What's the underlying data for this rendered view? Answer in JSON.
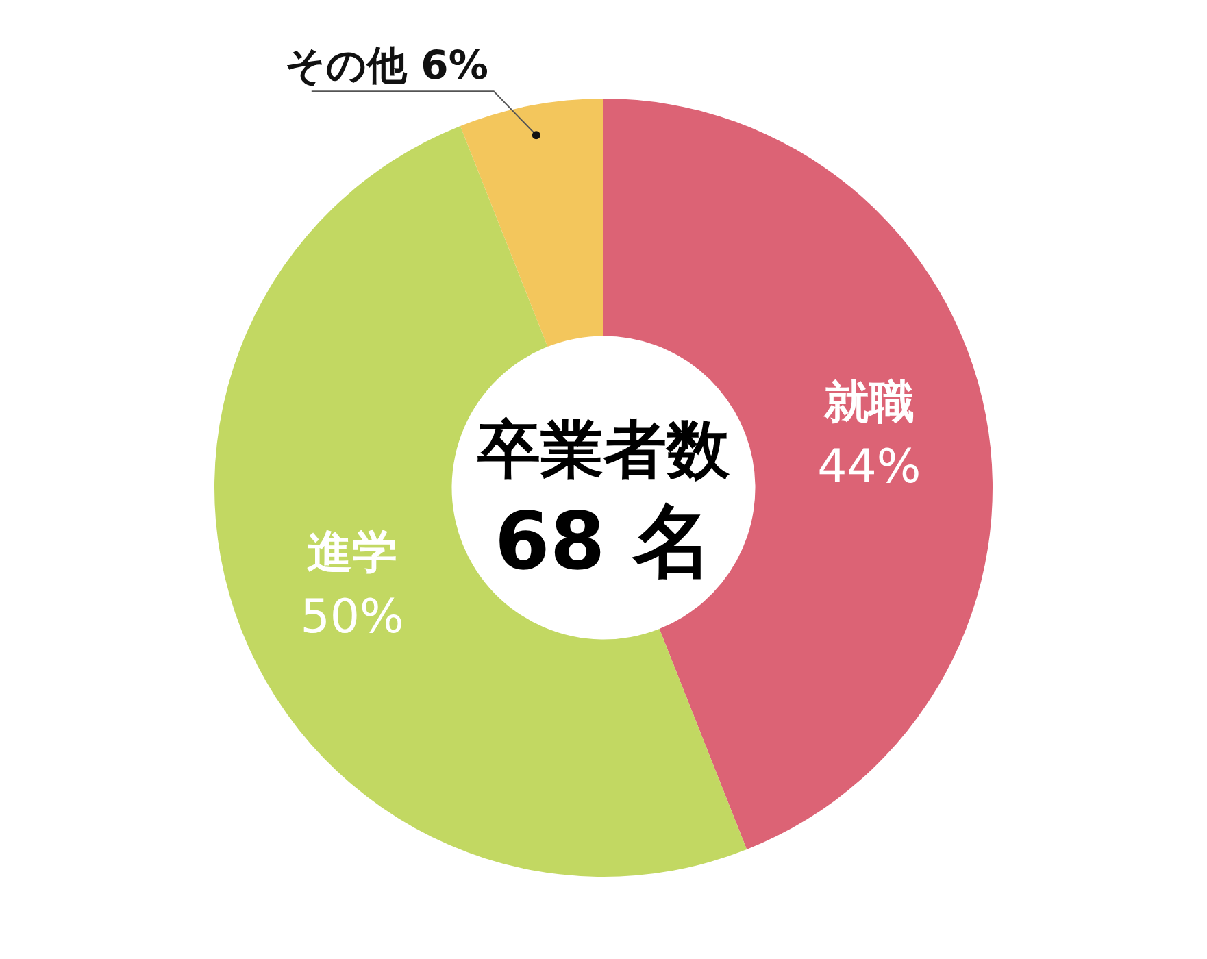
{
  "chart_data": {
    "type": "donut",
    "categories": [
      "就職",
      "進学",
      "その他"
    ],
    "values": [
      44,
      50,
      6
    ],
    "colors": [
      "#dc6375",
      "#c2d862",
      "#f3c65c"
    ],
    "value_labels": [
      "44%",
      "50%",
      "6%"
    ],
    "annotations": [
      "卒業者数",
      "68 名"
    ],
    "legend": false
  }
}
